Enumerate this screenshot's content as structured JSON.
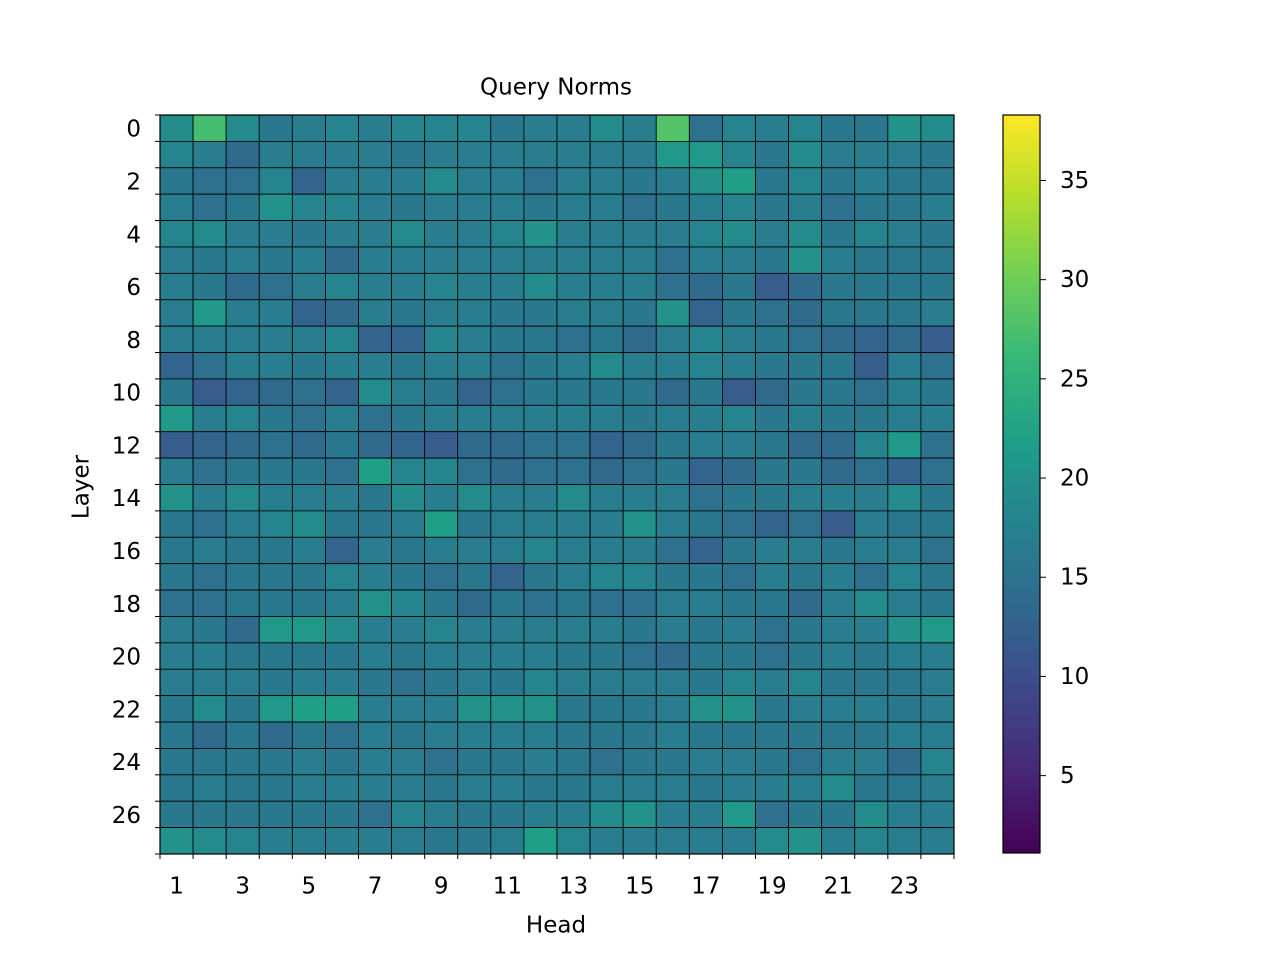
{
  "chart_data": {
    "type": "heatmap",
    "title": "Query Norms",
    "x_label": "Head",
    "y_label": "Layer",
    "colormap": "viridis",
    "clim": [
      1.1,
      38.3
    ],
    "colorbar_ticks": [
      5,
      10,
      15,
      20,
      25,
      30,
      35
    ],
    "categories": [
      "1",
      null,
      "3",
      null,
      "5",
      null,
      "7",
      null,
      "9",
      null,
      "11",
      null,
      "13",
      null,
      "15",
      null,
      "17",
      null,
      "19",
      null,
      "21",
      null,
      "23",
      null
    ],
    "rows": [
      "0",
      null,
      "2",
      null,
      "4",
      null,
      "6",
      null,
      "8",
      null,
      "10",
      null,
      "12",
      null,
      "14",
      null,
      "16",
      null,
      "18",
      null,
      "20",
      null,
      "22",
      null,
      "24",
      null,
      "26",
      null
    ],
    "values": [
      [
        19,
        27,
        19,
        16,
        17,
        18,
        17,
        18,
        18,
        18,
        16,
        17,
        17,
        19,
        17,
        28,
        15,
        18,
        17,
        18,
        16,
        16,
        20,
        19
      ],
      [
        18,
        17,
        14,
        17,
        17,
        17,
        17,
        16,
        17,
        17,
        17,
        17,
        17,
        17,
        17,
        21,
        21,
        18,
        16,
        19,
        17,
        17,
        17,
        16
      ],
      [
        16,
        15,
        15,
        18,
        13,
        17,
        17,
        17,
        19,
        17,
        17,
        15,
        17,
        17,
        16,
        17,
        20,
        22,
        16,
        18,
        16,
        17,
        16,
        16
      ],
      [
        17,
        15,
        16,
        20,
        18,
        18,
        17,
        16,
        17,
        17,
        17,
        16,
        17,
        17,
        15,
        16,
        17,
        18,
        16,
        17,
        15,
        16,
        16,
        17
      ],
      [
        18,
        19,
        17,
        17,
        16,
        17,
        17,
        19,
        17,
        17,
        18,
        20,
        17,
        17,
        17,
        17,
        18,
        19,
        17,
        19,
        16,
        18,
        17,
        16
      ],
      [
        17,
        16,
        17,
        16,
        17,
        14,
        17,
        17,
        17,
        17,
        17,
        17,
        17,
        17,
        17,
        15,
        17,
        17,
        16,
        20,
        17,
        16,
        16,
        16
      ],
      [
        17,
        16,
        14,
        15,
        17,
        18,
        17,
        17,
        18,
        17,
        17,
        19,
        17,
        17,
        17,
        15,
        14,
        16,
        12,
        14,
        16,
        16,
        16,
        16
      ],
      [
        17,
        21,
        17,
        17,
        13,
        14,
        17,
        16,
        17,
        17,
        16,
        16,
        17,
        17,
        16,
        20,
        13,
        16,
        15,
        14,
        16,
        16,
        16,
        17
      ],
      [
        17,
        17,
        17,
        17,
        17,
        18,
        13,
        13,
        18,
        17,
        16,
        16,
        15,
        16,
        14,
        17,
        18,
        17,
        16,
        15,
        14,
        13,
        14,
        12
      ],
      [
        13,
        15,
        17,
        17,
        16,
        17,
        17,
        16,
        17,
        17,
        15,
        16,
        17,
        19,
        17,
        17,
        18,
        17,
        16,
        16,
        16,
        12,
        17,
        15
      ],
      [
        16,
        12,
        13,
        14,
        15,
        13,
        19,
        17,
        16,
        13,
        15,
        16,
        16,
        16,
        16,
        14,
        16,
        12,
        14,
        16,
        16,
        15,
        17,
        16
      ],
      [
        21,
        17,
        18,
        16,
        15,
        17,
        15,
        16,
        17,
        17,
        17,
        17,
        17,
        17,
        16,
        17,
        17,
        18,
        16,
        17,
        16,
        16,
        17,
        17
      ],
      [
        12,
        13,
        14,
        15,
        14,
        16,
        14,
        13,
        12,
        14,
        14,
        15,
        15,
        13,
        14,
        16,
        17,
        17,
        16,
        14,
        14,
        18,
        21,
        15
      ],
      [
        17,
        15,
        16,
        16,
        16,
        15,
        22,
        18,
        18,
        15,
        14,
        15,
        15,
        14,
        15,
        16,
        13,
        14,
        16,
        16,
        14,
        15,
        13,
        15
      ],
      [
        20,
        17,
        19,
        17,
        17,
        17,
        16,
        19,
        17,
        19,
        17,
        17,
        19,
        17,
        17,
        17,
        15,
        16,
        16,
        17,
        17,
        17,
        19,
        16
      ],
      [
        16,
        15,
        17,
        18,
        19,
        16,
        16,
        17,
        22,
        16,
        17,
        17,
        17,
        17,
        20,
        17,
        16,
        15,
        13,
        15,
        12,
        17,
        16,
        16
      ],
      [
        16,
        17,
        16,
        16,
        17,
        13,
        17,
        16,
        17,
        17,
        17,
        18,
        17,
        17,
        17,
        15,
        13,
        16,
        17,
        17,
        16,
        17,
        17,
        15
      ],
      [
        16,
        15,
        16,
        16,
        16,
        18,
        17,
        16,
        15,
        16,
        13,
        16,
        17,
        18,
        18,
        16,
        16,
        15,
        17,
        16,
        17,
        15,
        18,
        16
      ],
      [
        15,
        15,
        16,
        16,
        16,
        17,
        20,
        18,
        16,
        14,
        16,
        15,
        16,
        15,
        15,
        17,
        17,
        16,
        16,
        14,
        17,
        19,
        17,
        16
      ],
      [
        17,
        16,
        14,
        21,
        21,
        19,
        17,
        17,
        18,
        17,
        17,
        17,
        17,
        17,
        16,
        17,
        16,
        17,
        15,
        16,
        17,
        17,
        20,
        21
      ],
      [
        17,
        17,
        16,
        16,
        16,
        16,
        17,
        16,
        17,
        17,
        17,
        17,
        16,
        16,
        15,
        14,
        16,
        16,
        15,
        16,
        17,
        16,
        17,
        17
      ],
      [
        17,
        17,
        17,
        16,
        17,
        17,
        16,
        15,
        16,
        17,
        16,
        18,
        17,
        17,
        17,
        17,
        16,
        18,
        17,
        18,
        16,
        16,
        16,
        17
      ],
      [
        16,
        19,
        16,
        21,
        22,
        22,
        17,
        17,
        17,
        20,
        20,
        20,
        16,
        16,
        16,
        17,
        20,
        20,
        16,
        17,
        17,
        17,
        16,
        17
      ],
      [
        16,
        14,
        16,
        14,
        16,
        15,
        17,
        16,
        17,
        17,
        17,
        17,
        16,
        16,
        16,
        17,
        16,
        16,
        16,
        16,
        16,
        16,
        17,
        17
      ],
      [
        16,
        16,
        16,
        16,
        17,
        16,
        17,
        17,
        15,
        16,
        16,
        17,
        16,
        15,
        16,
        16,
        17,
        17,
        16,
        15,
        17,
        17,
        14,
        18
      ],
      [
        16,
        17,
        16,
        16,
        17,
        17,
        17,
        17,
        16,
        17,
        17,
        16,
        16,
        17,
        17,
        17,
        16,
        17,
        17,
        17,
        19,
        16,
        16,
        17
      ],
      [
        16,
        16,
        16,
        16,
        16,
        16,
        15,
        18,
        17,
        16,
        16,
        17,
        17,
        19,
        20,
        17,
        17,
        21,
        15,
        16,
        16,
        19,
        17,
        17
      ],
      [
        20,
        19,
        18,
        17,
        17,
        17,
        17,
        17,
        16,
        16,
        17,
        22,
        18,
        17,
        17,
        17,
        17,
        17,
        19,
        20,
        17,
        18,
        17,
        17
      ]
    ]
  }
}
